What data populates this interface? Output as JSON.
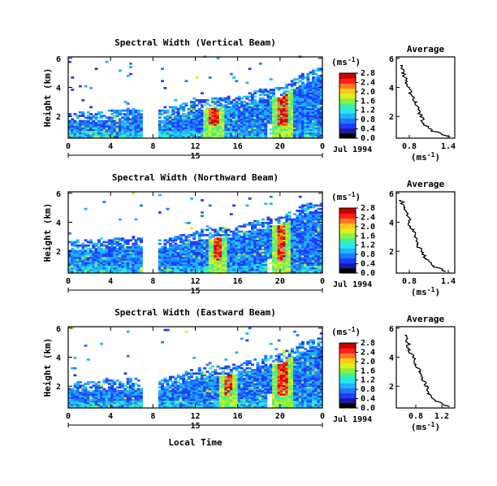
{
  "common": {
    "date_label": "Jul 1994",
    "day_label": "15",
    "x_axis_title": "Local Time",
    "y_axis_title": "Height (km)",
    "cbar_unit": "(ms",
    "cbar_unit_exp": "-1",
    "cbar_unit_close": ")",
    "avg_title": "Average",
    "avg_xunit": "(ms",
    "avg_xunit_exp": "-1",
    "avg_xunit_close": ")",
    "colormap": [
      "#ffffff",
      "#000000",
      "#1a1aa0",
      "#1e3cff",
      "#1e78ff",
      "#1eb4ff",
      "#28e6f0",
      "#3cf0a0",
      "#8cf03c",
      "#dcf01e",
      "#ffc81e",
      "#ff781e",
      "#ff1e1e",
      "#c80000"
    ]
  },
  "chart_data": [
    {
      "type": "heatmap",
      "title": "Spectral Width (Vertical Beam)",
      "xlim": [
        0,
        24
      ],
      "x_ticks": [
        "0",
        "4",
        "8",
        "12",
        "16",
        "20",
        "0"
      ],
      "ylim": [
        0.5,
        6.1
      ],
      "y_ticks": [
        "2",
        "4",
        "6"
      ],
      "cbar_labels": [
        "0.0",
        "0.4",
        "0.8",
        "1.2",
        "1.6",
        "2.0",
        "2.4",
        "2.8"
      ],
      "data_gap_hours": [
        7.0,
        8.5
      ],
      "max_echo_height_km": [
        [
          0,
          1.8
        ],
        [
          4,
          2.0
        ],
        [
          6,
          2.1
        ],
        [
          8.5,
          2.0
        ],
        [
          12,
          2.7
        ],
        [
          16,
          3.0
        ],
        [
          18,
          3.4
        ],
        [
          20,
          3.6
        ],
        [
          22,
          4.5
        ],
        [
          24,
          5.0
        ]
      ],
      "high_width_hours": [
        13.6,
        20.2
      ],
      "average_profile": {
        "xlim": [
          0.6,
          1.5
        ],
        "x_ticks": [
          "0.8",
          "1.4"
        ],
        "ylim": [
          0.5,
          6.1
        ],
        "y_ticks": [
          "2",
          "4",
          "6"
        ],
        "height_km": [
          0.6,
          1.0,
          1.5,
          2.0,
          2.5,
          3.0,
          3.5,
          4.0,
          4.5,
          5.0,
          5.5
        ],
        "width_ms": [
          1.43,
          1.15,
          1.02,
          0.98,
          0.94,
          0.88,
          0.84,
          0.79,
          0.75,
          0.71,
          0.66
        ]
      }
    },
    {
      "type": "heatmap",
      "title": "Spectral Width (Northward Beam)",
      "xlim": [
        0,
        24
      ],
      "x_ticks": [
        "0",
        "4",
        "8",
        "12",
        "16",
        "20",
        "0"
      ],
      "ylim": [
        0.5,
        6.1
      ],
      "y_ticks": [
        "2",
        "4",
        "6"
      ],
      "cbar_labels": [
        "0.0",
        "0.4",
        "0.8",
        "1.2",
        "1.6",
        "2.0",
        "2.4",
        "2.8"
      ],
      "data_gap_hours": [
        7.0,
        8.5
      ],
      "max_echo_height_km": [
        [
          0,
          2.3
        ],
        [
          4,
          2.5
        ],
        [
          6,
          2.6
        ],
        [
          8.5,
          2.4
        ],
        [
          12,
          3.0
        ],
        [
          16,
          3.3
        ],
        [
          18,
          3.8
        ],
        [
          20,
          4.0
        ],
        [
          22,
          4.8
        ],
        [
          24,
          5.0
        ]
      ],
      "high_width_hours": [
        14.0,
        20.0
      ],
      "average_profile": {
        "xlim": [
          0.6,
          1.5
        ],
        "x_ticks": [
          "0.8",
          "1.4"
        ],
        "ylim": [
          0.5,
          6.1
        ],
        "y_ticks": [
          "2",
          "4",
          "6"
        ],
        "height_km": [
          0.6,
          1.0,
          1.5,
          2.0,
          2.5,
          3.0,
          3.5,
          4.0,
          4.5,
          5.0,
          5.5
        ],
        "width_ms": [
          1.36,
          1.16,
          1.05,
          0.98,
          0.93,
          0.89,
          0.85,
          0.8,
          0.76,
          0.72,
          0.67
        ]
      }
    },
    {
      "type": "heatmap",
      "title": "Spectral Width (Eastward Beam)",
      "xlim": [
        0,
        24
      ],
      "x_ticks": [
        "0",
        "4",
        "8",
        "12",
        "16",
        "20",
        "0"
      ],
      "ylim": [
        0.5,
        6.1
      ],
      "y_ticks": [
        "2",
        "4",
        "6"
      ],
      "cbar_labels": [
        "0.0",
        "0.4",
        "0.8",
        "1.2",
        "1.6",
        "2.0",
        "2.4",
        "2.8"
      ],
      "data_gap_hours": [
        7.0,
        8.5
      ],
      "max_echo_height_km": [
        [
          0,
          1.8
        ],
        [
          4,
          2.0
        ],
        [
          6,
          2.1
        ],
        [
          8.5,
          2.0
        ],
        [
          12,
          2.8
        ],
        [
          16,
          3.1
        ],
        [
          18,
          3.6
        ],
        [
          20,
          3.8
        ],
        [
          22,
          4.6
        ],
        [
          24,
          5.0
        ]
      ],
      "high_width_hours": [
        15.0,
        20.2
      ],
      "average_profile": {
        "xlim": [
          0.5,
          1.4
        ],
        "x_ticks": [
          "0.8",
          "1.2"
        ],
        "ylim": [
          0.5,
          6.1
        ],
        "y_ticks": [
          "2",
          "4",
          "6"
        ],
        "height_km": [
          0.6,
          1.0,
          1.5,
          2.0,
          2.5,
          3.0,
          3.5,
          4.0,
          4.5,
          5.0,
          5.5
        ],
        "width_ms": [
          1.32,
          1.1,
          1.0,
          0.95,
          0.9,
          0.85,
          0.8,
          0.75,
          0.71,
          0.67,
          0.63
        ]
      }
    }
  ]
}
